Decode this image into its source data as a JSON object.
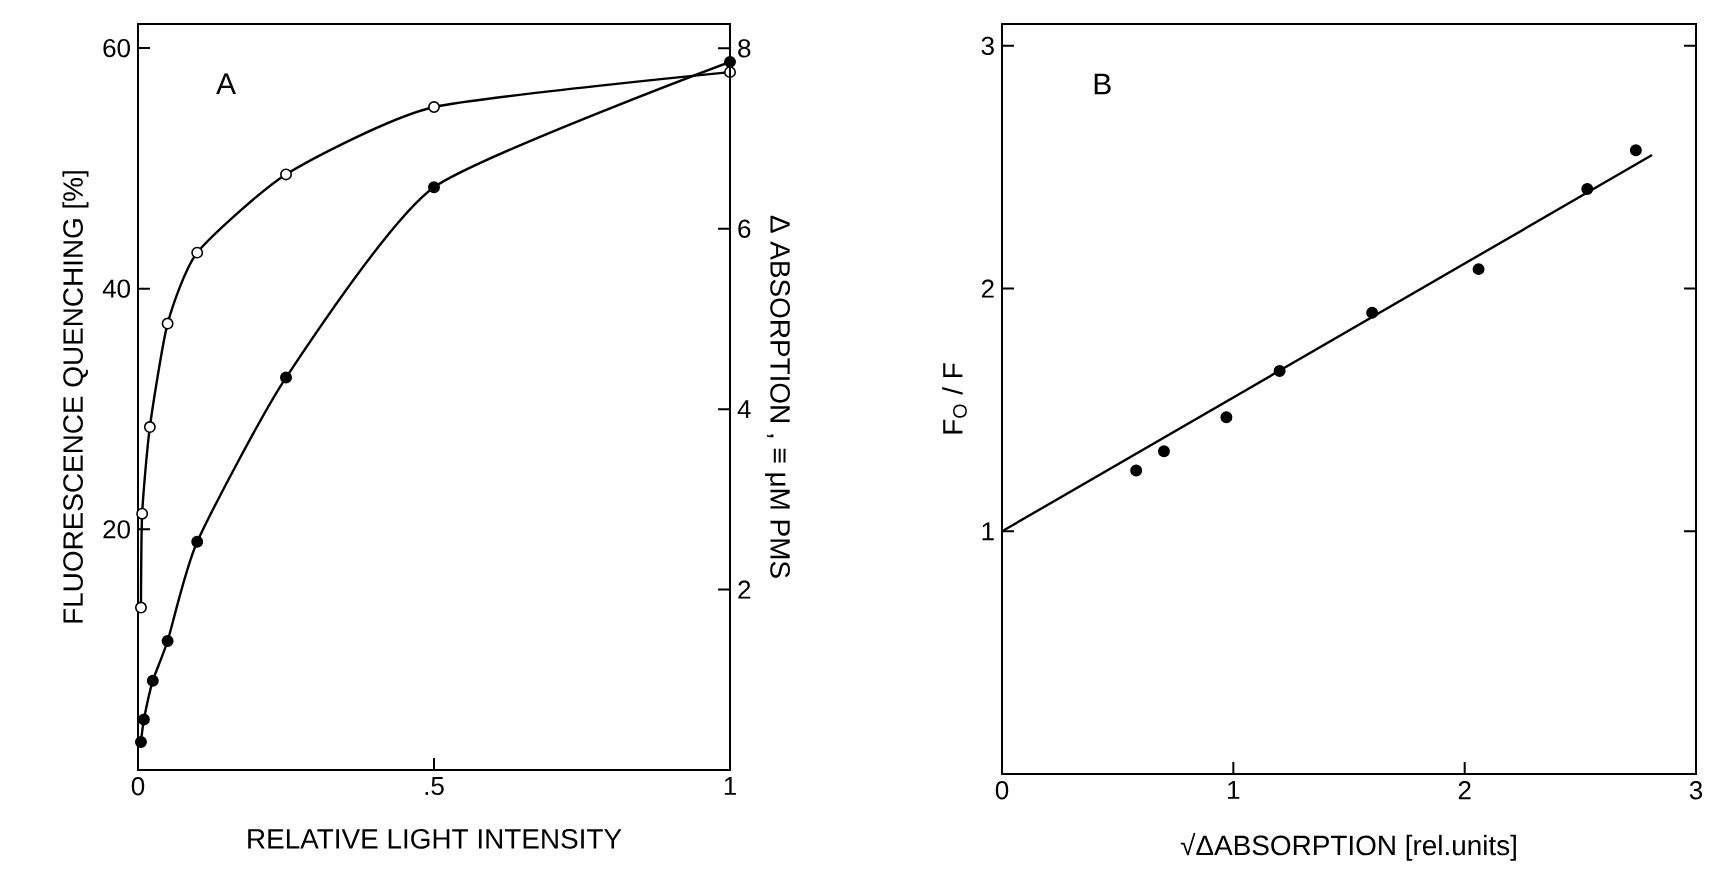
{
  "chart_data": [
    {
      "type": "line",
      "xlabel": "RELATIVE LIGHT INTENSITY",
      "ylabel": "FLUORESCENCE QUENCHING [%]",
      "y2label": "Δ ABSORPTION , ≡ μM PMS",
      "annotations": [
        "A"
      ],
      "marker": "circle",
      "xlim": [
        0,
        1
      ],
      "xticks": [
        0,
        {
          "value": 0.5,
          "label": ".5"
        },
        1
      ],
      "ylim": [
        0,
        62
      ],
      "yticks": [
        20,
        40,
        60
      ],
      "y2lim": [
        0,
        8.27
      ],
      "y2ticks": [
        2,
        4,
        6,
        8
      ],
      "series": [
        {
          "axis": "y",
          "color": "#000000",
          "x": [
            0.005,
            0.007,
            0.02,
            0.05,
            0.1,
            0.25,
            0.5,
            1
          ],
          "values": [
            13.5,
            21.3,
            28.5,
            37.1,
            43.0,
            49.5,
            55.1,
            58.0
          ]
        },
        {
          "axis": "y2",
          "color": "#000000",
          "x": [
            0.005,
            0.01,
            0.025,
            0.05,
            0.1,
            0.25,
            0.5,
            1
          ],
          "values": [
            0.31,
            0.56,
            0.99,
            1.43,
            2.53,
            4.35,
            6.46,
            7.85
          ]
        }
      ]
    },
    {
      "type": "scatter",
      "xlabel": "√ΔABSORPTION [rel.units]",
      "ylabel": "F$_{O}$ / F",
      "annotations": [
        "B"
      ],
      "xlim": [
        0,
        3
      ],
      "xticks": [
        0,
        1,
        2,
        3
      ],
      "ylim": [
        0,
        3.09
      ],
      "yticks": [
        1,
        2,
        3
      ],
      "series": [
        {
          "type": "scatter",
          "marker": "circle",
          "color": "#000000",
          "x": [
            0.58,
            0.7,
            0.97,
            1.2,
            1.6,
            2.06,
            2.53,
            2.74
          ],
          "values": [
            1.25,
            1.33,
            1.47,
            1.66,
            1.9,
            2.08,
            2.41,
            2.57
          ]
        },
        {
          "type": "line",
          "marker": "none",
          "color": "#000000",
          "x": [
            0,
            2.81
          ],
          "values": [
            1,
            2.55
          ]
        }
      ]
    }
  ]
}
